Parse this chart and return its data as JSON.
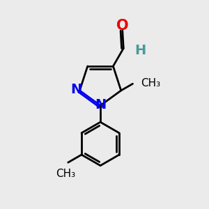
{
  "background_color": "#ebebeb",
  "bond_color": "#000000",
  "N_color": "#0000ee",
  "O_color": "#ee0000",
  "H_color": "#4a9a9a",
  "line_width": 2.0,
  "dbo": 0.08,
  "font_size_atom": 14,
  "font_size_label": 11,
  "fig_size": [
    3.0,
    3.0
  ],
  "dpi": 100,
  "xlim": [
    0,
    10
  ],
  "ylim": [
    0,
    10
  ]
}
